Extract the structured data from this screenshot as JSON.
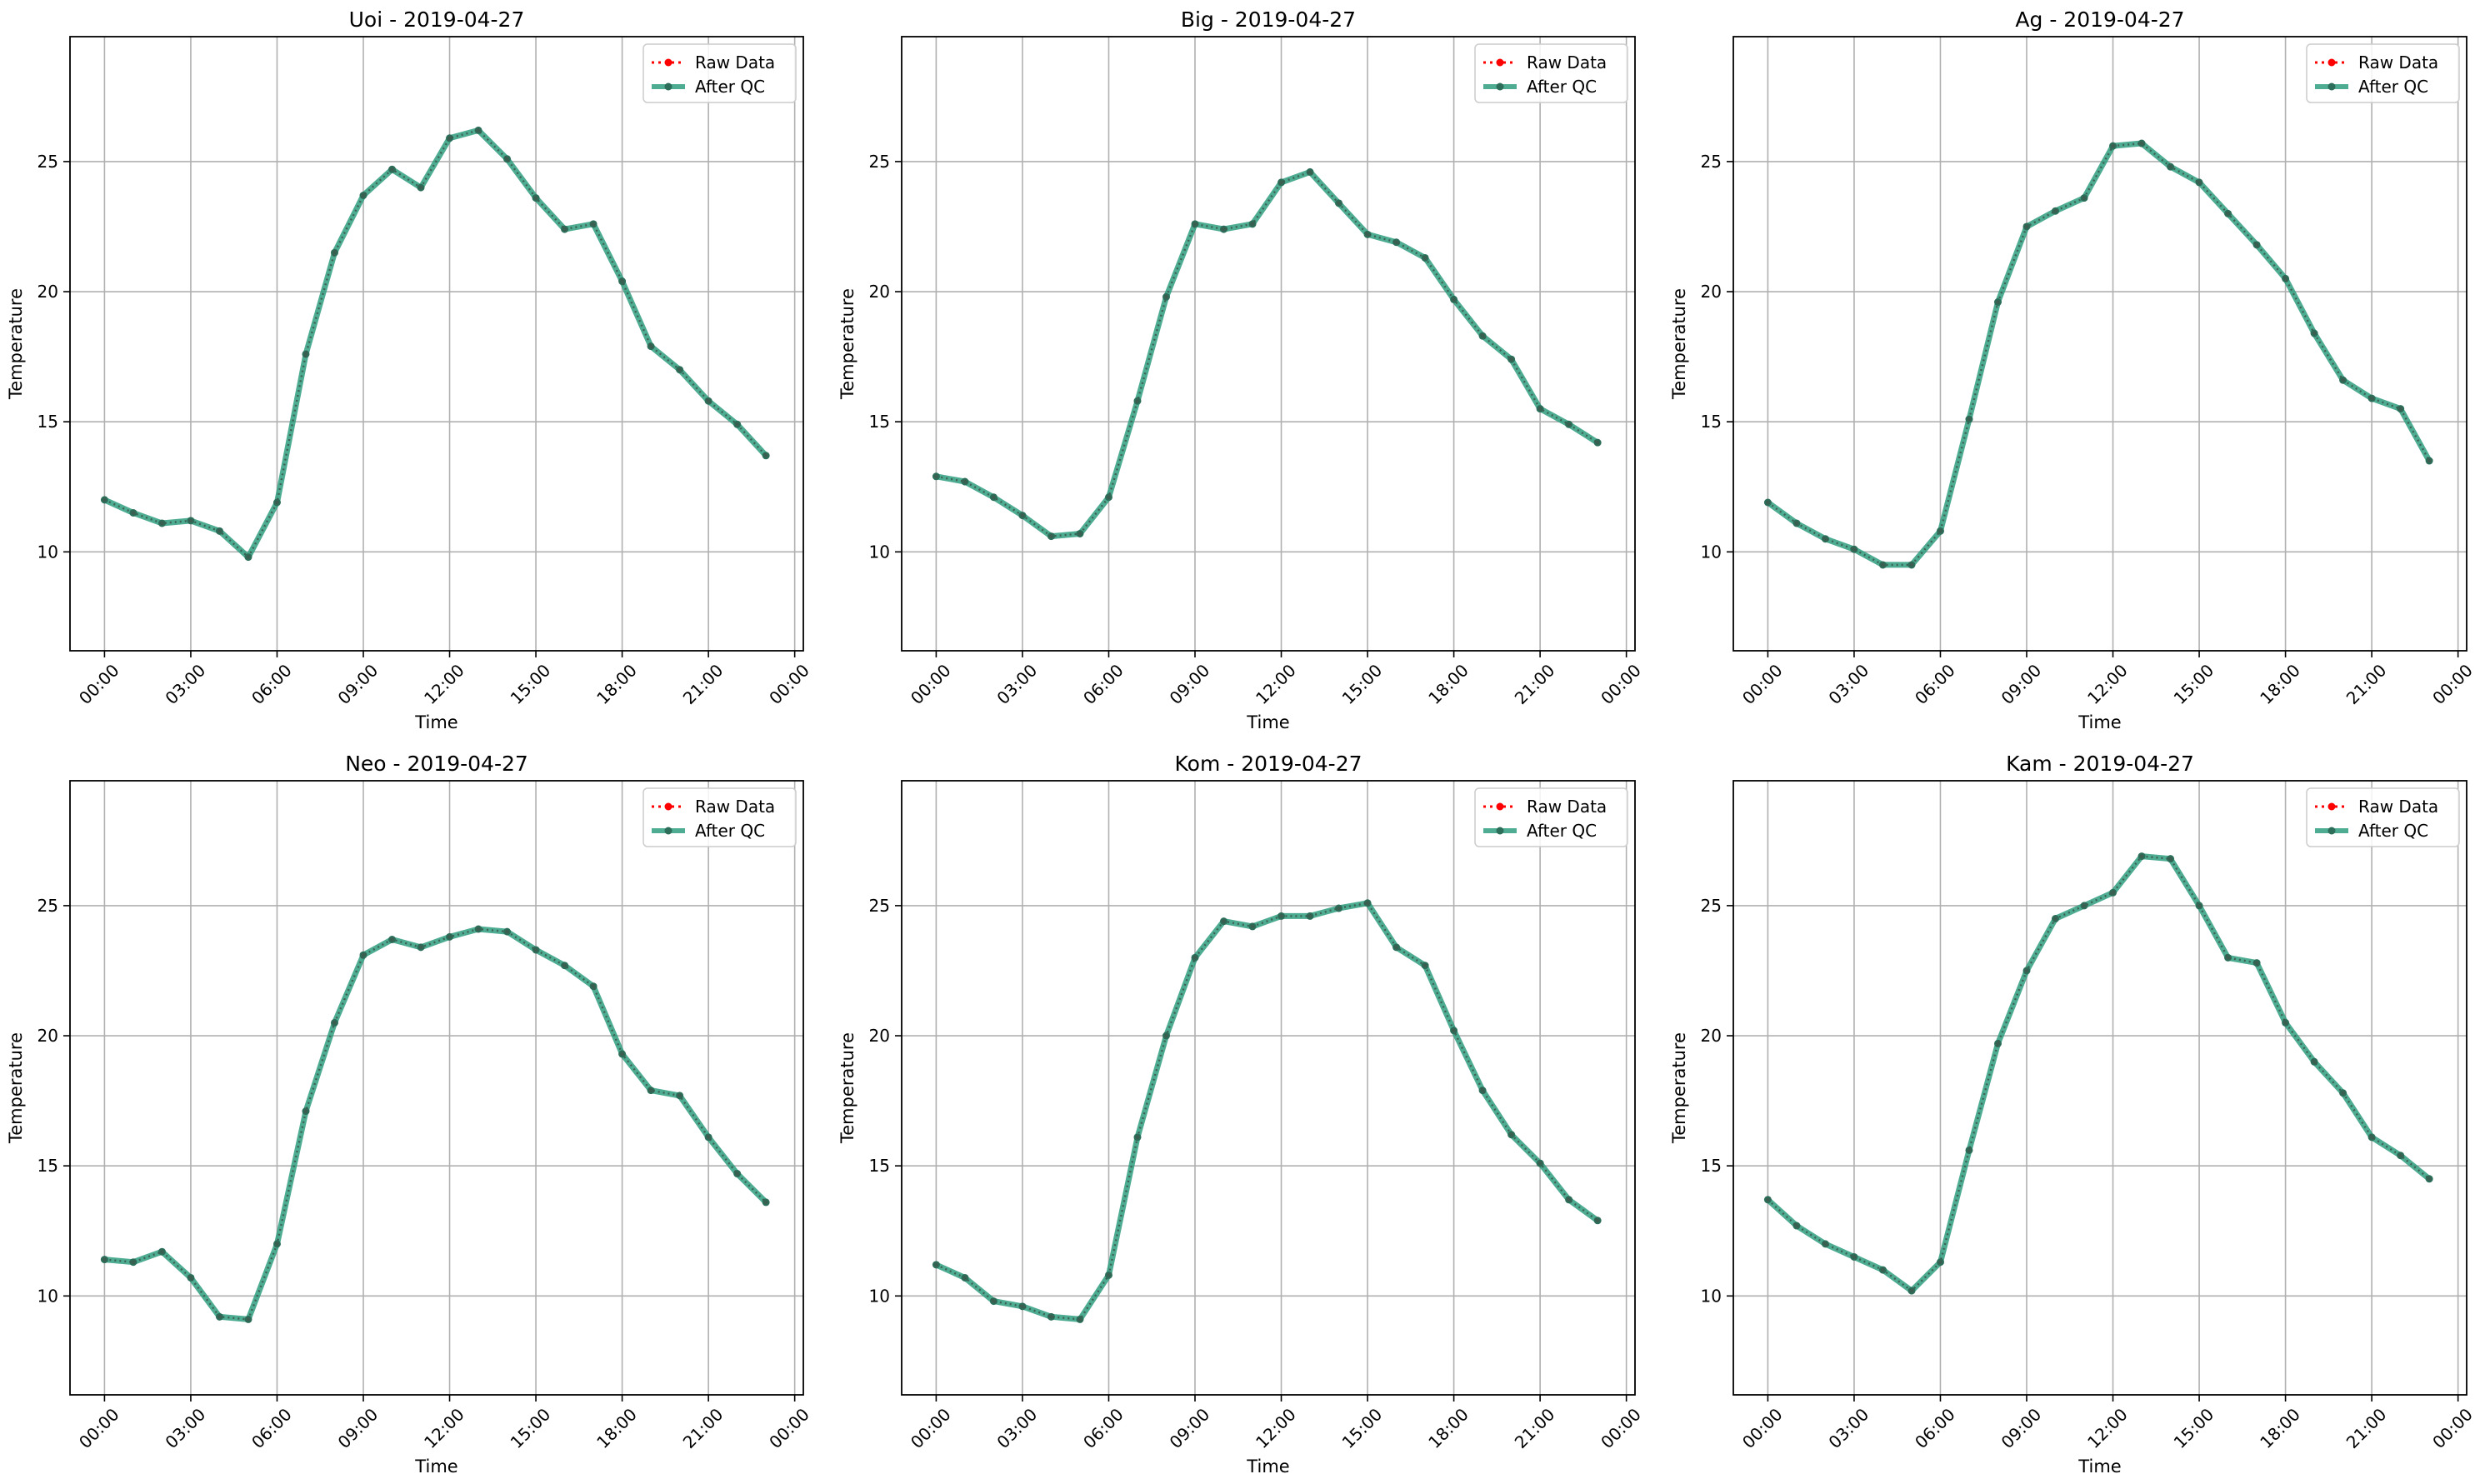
{
  "chart_data": [
    {
      "type": "line",
      "title": "Uoi - 2019-04-27",
      "xlabel": "Time",
      "ylabel": "Temperature",
      "x_ticks": [
        "00:00",
        "03:00",
        "06:00",
        "09:00",
        "12:00",
        "15:00",
        "18:00",
        "21:00",
        "00:00"
      ],
      "y_ticks": [
        "10",
        "15",
        "20",
        "25"
      ],
      "xlim_hours": [
        -1.2,
        24.3
      ],
      "ylim": [
        6.2,
        29.8
      ],
      "grid": true,
      "legend_position": "top-right",
      "x_hours": [
        0,
        1,
        2,
        3,
        4,
        5,
        6,
        7,
        8,
        9,
        10,
        11,
        12,
        13,
        14,
        15,
        16,
        17,
        18,
        19,
        20,
        21,
        22,
        23
      ],
      "series": [
        {
          "name": "Raw Data",
          "color": "#ff0000",
          "style": "dotted",
          "values": [
            12.0,
            11.5,
            11.1,
            11.2,
            10.8,
            9.8,
            11.9,
            17.6,
            21.5,
            23.7,
            24.7,
            24.0,
            25.9,
            26.2,
            25.1,
            23.6,
            22.4,
            22.6,
            20.4,
            17.9,
            17.0,
            15.8,
            14.9,
            13.7
          ]
        },
        {
          "name": "After QC",
          "color": "#2e9e7e",
          "style": "solid",
          "values": [
            12.0,
            11.5,
            11.1,
            11.2,
            10.8,
            9.8,
            11.9,
            17.6,
            21.5,
            23.7,
            24.7,
            24.0,
            25.9,
            26.2,
            25.1,
            23.6,
            22.4,
            22.6,
            20.4,
            17.9,
            17.0,
            15.8,
            14.9,
            13.7
          ]
        }
      ]
    },
    {
      "type": "line",
      "title": "Big - 2019-04-27",
      "xlabel": "Time",
      "ylabel": "Temperature",
      "x_ticks": [
        "00:00",
        "03:00",
        "06:00",
        "09:00",
        "12:00",
        "15:00",
        "18:00",
        "21:00",
        "00:00"
      ],
      "y_ticks": [
        "10",
        "15",
        "20",
        "25"
      ],
      "xlim_hours": [
        -1.2,
        24.3
      ],
      "ylim": [
        6.2,
        29.8
      ],
      "grid": true,
      "legend_position": "top-right",
      "x_hours": [
        0,
        1,
        2,
        3,
        4,
        5,
        6,
        7,
        8,
        9,
        10,
        11,
        12,
        13,
        14,
        15,
        16,
        17,
        18,
        19,
        20,
        21,
        22,
        23
      ],
      "series": [
        {
          "name": "Raw Data",
          "color": "#ff0000",
          "style": "dotted",
          "values": [
            12.9,
            12.7,
            12.1,
            11.4,
            10.6,
            10.7,
            12.1,
            15.8,
            19.8,
            22.6,
            22.4,
            22.6,
            24.2,
            24.6,
            23.4,
            22.2,
            21.9,
            21.3,
            19.7,
            18.3,
            17.4,
            15.5,
            14.9,
            14.2
          ]
        },
        {
          "name": "After QC",
          "color": "#2e9e7e",
          "style": "solid",
          "values": [
            12.9,
            12.7,
            12.1,
            11.4,
            10.6,
            10.7,
            12.1,
            15.8,
            19.8,
            22.6,
            22.4,
            22.6,
            24.2,
            24.6,
            23.4,
            22.2,
            21.9,
            21.3,
            19.7,
            18.3,
            17.4,
            15.5,
            14.9,
            14.2
          ]
        }
      ]
    },
    {
      "type": "line",
      "title": "Ag - 2019-04-27",
      "xlabel": "Time",
      "ylabel": "Temperature",
      "x_ticks": [
        "00:00",
        "03:00",
        "06:00",
        "09:00",
        "12:00",
        "15:00",
        "18:00",
        "21:00",
        "00:00"
      ],
      "y_ticks": [
        "10",
        "15",
        "20",
        "25"
      ],
      "xlim_hours": [
        -1.2,
        24.3
      ],
      "ylim": [
        6.2,
        29.8
      ],
      "grid": true,
      "legend_position": "top-right",
      "x_hours": [
        0,
        1,
        2,
        3,
        4,
        5,
        6,
        7,
        8,
        9,
        10,
        11,
        12,
        13,
        14,
        15,
        16,
        17,
        18,
        19,
        20,
        21,
        22,
        23
      ],
      "series": [
        {
          "name": "Raw Data",
          "color": "#ff0000",
          "style": "dotted",
          "values": [
            11.9,
            11.1,
            10.5,
            10.1,
            9.5,
            9.5,
            10.8,
            15.1,
            19.6,
            22.5,
            23.1,
            23.6,
            25.6,
            25.7,
            24.8,
            24.2,
            23.0,
            21.8,
            20.5,
            18.4,
            16.6,
            15.9,
            15.5,
            13.5
          ]
        },
        {
          "name": "After QC",
          "color": "#2e9e7e",
          "style": "solid",
          "values": [
            11.9,
            11.1,
            10.5,
            10.1,
            9.5,
            9.5,
            10.8,
            15.1,
            19.6,
            22.5,
            23.1,
            23.6,
            25.6,
            25.7,
            24.8,
            24.2,
            23.0,
            21.8,
            20.5,
            18.4,
            16.6,
            15.9,
            15.5,
            13.5
          ]
        }
      ]
    },
    {
      "type": "line",
      "title": "Neo - 2019-04-27",
      "xlabel": "Time",
      "ylabel": "Temperature",
      "x_ticks": [
        "00:00",
        "03:00",
        "06:00",
        "09:00",
        "12:00",
        "15:00",
        "18:00",
        "21:00",
        "00:00"
      ],
      "y_ticks": [
        "10",
        "15",
        "20",
        "25"
      ],
      "xlim_hours": [
        -1.2,
        24.3
      ],
      "ylim": [
        6.2,
        29.8
      ],
      "grid": true,
      "legend_position": "top-right",
      "x_hours": [
        0,
        1,
        2,
        3,
        4,
        5,
        6,
        7,
        8,
        9,
        10,
        11,
        12,
        13,
        14,
        15,
        16,
        17,
        18,
        19,
        20,
        21,
        22,
        23
      ],
      "series": [
        {
          "name": "Raw Data",
          "color": "#ff0000",
          "style": "dotted",
          "values": [
            11.4,
            11.3,
            11.7,
            10.7,
            9.2,
            9.1,
            12.0,
            17.1,
            20.5,
            23.1,
            23.7,
            23.4,
            23.8,
            24.1,
            24.0,
            23.3,
            22.7,
            21.9,
            19.3,
            17.9,
            17.7,
            16.1,
            14.7,
            13.6
          ]
        },
        {
          "name": "After QC",
          "color": "#2e9e7e",
          "style": "solid",
          "values": [
            11.4,
            11.3,
            11.7,
            10.7,
            9.2,
            9.1,
            12.0,
            17.1,
            20.5,
            23.1,
            23.7,
            23.4,
            23.8,
            24.1,
            24.0,
            23.3,
            22.7,
            21.9,
            19.3,
            17.9,
            17.7,
            16.1,
            14.7,
            13.6
          ]
        }
      ]
    },
    {
      "type": "line",
      "title": "Kom - 2019-04-27",
      "xlabel": "Time",
      "ylabel": "Temperature",
      "x_ticks": [
        "00:00",
        "03:00",
        "06:00",
        "09:00",
        "12:00",
        "15:00",
        "18:00",
        "21:00",
        "00:00"
      ],
      "y_ticks": [
        "10",
        "15",
        "20",
        "25"
      ],
      "xlim_hours": [
        -1.2,
        24.3
      ],
      "ylim": [
        6.2,
        29.8
      ],
      "grid": true,
      "legend_position": "top-right",
      "x_hours": [
        0,
        1,
        2,
        3,
        4,
        5,
        6,
        7,
        8,
        9,
        10,
        11,
        12,
        13,
        14,
        15,
        16,
        17,
        18,
        19,
        20,
        21,
        22,
        23
      ],
      "series": [
        {
          "name": "Raw Data",
          "color": "#ff0000",
          "style": "dotted",
          "values": [
            11.2,
            10.7,
            9.8,
            9.6,
            9.2,
            9.1,
            10.8,
            16.1,
            20.0,
            23.0,
            24.4,
            24.2,
            24.6,
            24.6,
            24.9,
            25.1,
            23.4,
            22.7,
            20.2,
            17.9,
            16.2,
            15.1,
            13.7,
            12.9
          ]
        },
        {
          "name": "After QC",
          "color": "#2e9e7e",
          "style": "solid",
          "values": [
            11.2,
            10.7,
            9.8,
            9.6,
            9.2,
            9.1,
            10.8,
            16.1,
            20.0,
            23.0,
            24.4,
            24.2,
            24.6,
            24.6,
            24.9,
            25.1,
            23.4,
            22.7,
            20.2,
            17.9,
            16.2,
            15.1,
            13.7,
            12.9
          ]
        }
      ]
    },
    {
      "type": "line",
      "title": "Kam - 2019-04-27",
      "xlabel": "Time",
      "ylabel": "Temperature",
      "x_ticks": [
        "00:00",
        "03:00",
        "06:00",
        "09:00",
        "12:00",
        "15:00",
        "18:00",
        "21:00",
        "00:00"
      ],
      "y_ticks": [
        "10",
        "15",
        "20",
        "25"
      ],
      "xlim_hours": [
        -1.2,
        24.3
      ],
      "ylim": [
        6.2,
        29.8
      ],
      "grid": true,
      "legend_position": "top-right",
      "x_hours": [
        0,
        1,
        2,
        3,
        4,
        5,
        6,
        7,
        8,
        9,
        10,
        11,
        12,
        13,
        14,
        15,
        16,
        17,
        18,
        19,
        20,
        21,
        22,
        23
      ],
      "series": [
        {
          "name": "Raw Data",
          "color": "#ff0000",
          "style": "dotted",
          "values": [
            13.7,
            12.7,
            12.0,
            11.5,
            11.0,
            10.2,
            11.3,
            15.6,
            19.7,
            22.5,
            24.5,
            25.0,
            25.5,
            26.9,
            26.8,
            25.0,
            23.0,
            22.8,
            20.5,
            19.0,
            17.8,
            16.1,
            15.4,
            14.5
          ]
        },
        {
          "name": "After QC",
          "color": "#2e9e7e",
          "style": "solid",
          "values": [
            13.7,
            12.7,
            12.0,
            11.5,
            11.0,
            10.2,
            11.3,
            15.6,
            19.7,
            22.5,
            24.5,
            25.0,
            25.5,
            26.9,
            26.8,
            25.0,
            23.0,
            22.8,
            20.5,
            19.0,
            17.8,
            16.1,
            15.4,
            14.5
          ]
        }
      ]
    }
  ]
}
